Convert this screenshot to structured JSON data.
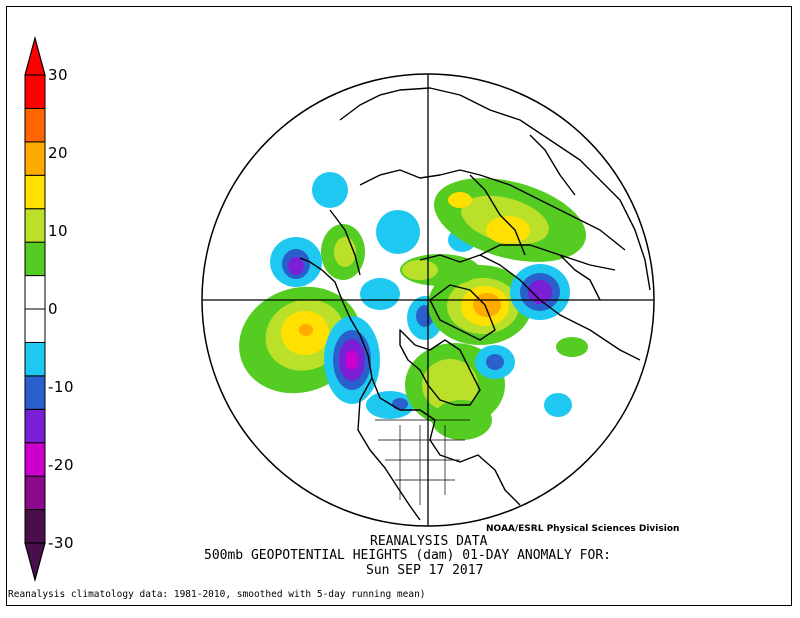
{
  "colorbar": {
    "ticks": [
      "30",
      "20",
      "10",
      "0",
      "-10",
      "-20",
      "-30"
    ],
    "colors": [
      "#4a0f4a",
      "#8b0a8b",
      "#cc00cc",
      "#7a1fd6",
      "#2a60cc",
      "#1ec8f0",
      "#ffffff",
      "#ffffff",
      "#55cc22",
      "#bbe02a",
      "#ffe000",
      "#ffaa00",
      "#ff6600",
      "#ff0000"
    ]
  },
  "title": {
    "line1": "REANALYSIS DATA",
    "line2": "500mb GEOPOTENTIAL HEIGHTS (dam)    01-DAY ANOMALY FOR:",
    "line3": "Sun SEP 17 2017"
  },
  "credit": "NOAA/ESRL Physical Sciences Division",
  "footnote": "Reanalysis climatology data: 1981-2010, smoothed with 5-day running mean)"
}
